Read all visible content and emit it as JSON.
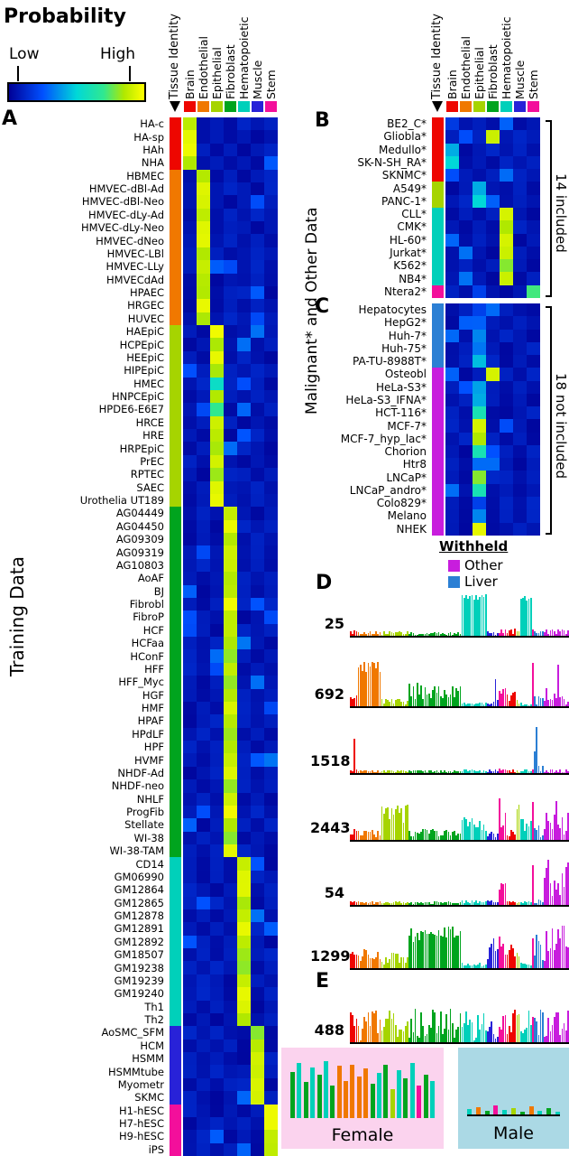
{
  "legend": {
    "title": "Probability",
    "low": "Low",
    "high": "High"
  },
  "tissue_identity_label": "Tissue Identity",
  "columns": [
    {
      "name": "Brain",
      "color": "#ee0600"
    },
    {
      "name": "Endothelial",
      "color": "#f07800"
    },
    {
      "name": "Epithelial",
      "color": "#a6d400"
    },
    {
      "name": "Fibroblast",
      "color": "#00a41e"
    },
    {
      "name": "Hematopoietic",
      "color": "#00d0ba"
    },
    {
      "name": "Muscle",
      "color": "#2822d8"
    },
    {
      "name": "Stem",
      "color": "#f30f9b"
    }
  ],
  "colors": {
    "colormap": [
      [
        0,
        "#000096"
      ],
      [
        0.25,
        "#0050ff"
      ],
      [
        0.5,
        "#00d8d8"
      ],
      [
        0.7,
        "#30e890"
      ],
      [
        0.85,
        "#b0e800"
      ],
      [
        1,
        "#ffff00"
      ]
    ],
    "bar_palette": {
      "g": "#00a41e",
      "t": "#00d0ba",
      "o": "#f07800",
      "c": "#a6d400",
      "m": "#f30f9b"
    }
  },
  "panel_a": {
    "letter": "A",
    "side_label": "Training Data",
    "groups": [
      {
        "g": 0,
        "rows": [
          "HA-c",
          "HA-sp",
          "HAh",
          "NHA"
        ]
      },
      {
        "g": 1,
        "rows": [
          "HBMEC",
          "HMVEC-dBl-Ad",
          "HMVEC-dBl-Neo",
          "HMVEC-dLy-Ad",
          "HMVEC-dLy-Neo",
          "HMVEC-dNeo",
          "HMVEC-LBl",
          "HMVEC-LLy",
          "HMVECdAd",
          "HPAEC",
          "HRGEC",
          "HUVEC"
        ]
      },
      {
        "g": 2,
        "rows": [
          "HAEpiC",
          "HCPEpiC",
          "HEEpiC",
          "HIPEpiC",
          "HMEC",
          "HNPCEpiC",
          "HPDE6-E6E7",
          "HRCE",
          "HRE",
          "HRPEpiC",
          "PrEC",
          "RPTEC",
          "SAEC",
          "Urothelia UT189"
        ]
      },
      {
        "g": 3,
        "rows": [
          "AG04449",
          "AG04450",
          "AG09309",
          "AG09319",
          "AG10803",
          "AoAF",
          "BJ",
          "Fibrobl",
          "FibroP",
          "HCF",
          "HCFaa",
          "HConF",
          "HFF",
          "HFF_Myc",
          "HGF",
          "HMF",
          "HPAF",
          "HPdLF",
          "HPF",
          "HVMF",
          "NHDF-Ad",
          "NHDF-neo",
          "NHLF",
          "ProgFib",
          "Stellate",
          "WI-38",
          "WI-38-TAM"
        ]
      },
      {
        "g": 4,
        "rows": [
          "CD14",
          "GM06990",
          "GM12864",
          "GM12865",
          "GM12878",
          "GM12891",
          "GM12892",
          "GM18507",
          "GM19238",
          "GM19239",
          "GM19240",
          "Th1",
          "Th2"
        ]
      },
      {
        "g": 5,
        "rows": [
          "AoSMC_SFM",
          "HCM",
          "HSMM",
          "HSMMtube",
          "Myometr",
          "SKMC"
        ]
      },
      {
        "g": 6,
        "rows": [
          "H1-hESC",
          "H7-hESC",
          "H9-hESC",
          "iPS"
        ]
      }
    ],
    "peak_overrides": {
      "HMEC": 0.55,
      "HPDE6-E6E7": 0.7
    }
  },
  "panel_b": {
    "letter": "B",
    "bracket": "14 included",
    "rows": [
      {
        "n": "BE2_C*",
        "g": 0,
        "peaks": {
          "0": 0.18
        }
      },
      {
        "n": "Gliobla*",
        "g": 0,
        "peaks": {
          "3": 0.9
        }
      },
      {
        "n": "Medullo*",
        "g": 0,
        "peaks": {
          "0": 0.42
        }
      },
      {
        "n": "SK-N-SH_RA*",
        "g": 0,
        "peaks": {
          "0": 0.5
        }
      },
      {
        "n": "SKNMC*",
        "g": 0,
        "peaks": {
          "4": 0.3
        }
      },
      {
        "n": "A549*",
        "g": 2,
        "peaks": {
          "2": 0.42
        }
      },
      {
        "n": "PANC-1*",
        "g": 2,
        "peaks": {
          "2": 0.5,
          "3": 0.28
        }
      },
      {
        "n": "CLL*",
        "g": 4,
        "peaks": {
          "4": 0.92
        }
      },
      {
        "n": "CMK*",
        "g": 4,
        "peaks": {
          "4": 0.85
        }
      },
      {
        "n": "HL-60*",
        "g": 4,
        "peaks": {
          "4": 0.92
        }
      },
      {
        "n": "Jurkat*",
        "g": 4,
        "peaks": {
          "4": 0.9
        }
      },
      {
        "n": "K562*",
        "g": 4,
        "peaks": {
          "4": 0.8
        }
      },
      {
        "n": "NB4*",
        "g": 4,
        "peaks": {
          "4": 0.9
        }
      },
      {
        "n": "Ntera2*",
        "g": 6,
        "peaks": {
          "6": 0.72,
          "2": 0.2
        }
      }
    ]
  },
  "panel_c": {
    "letter": "C",
    "bracket": "18 not included",
    "rows": [
      {
        "n": "Hepatocytes",
        "w": "liver",
        "peaks": {
          "2": 0.2,
          "3": 0.3
        }
      },
      {
        "n": "HepG2*",
        "w": "liver",
        "peaks": {
          "2": 0.28
        }
      },
      {
        "n": "Huh-7*",
        "w": "liver",
        "peaks": {
          "2": 0.35
        }
      },
      {
        "n": "Huh-75*",
        "w": "liver",
        "peaks": {
          "2": 0.32
        }
      },
      {
        "n": "PA-TU-8988T*",
        "w": "liver",
        "peaks": {
          "2": 0.45
        }
      },
      {
        "n": "Osteobl",
        "w": "other",
        "peaks": {
          "3": 0.92
        }
      },
      {
        "n": "HeLa-S3*",
        "w": "other",
        "peaks": {
          "2": 0.4
        }
      },
      {
        "n": "HeLa-S3_IFNA*",
        "w": "other",
        "peaks": {
          "2": 0.42
        }
      },
      {
        "n": "HCT-116*",
        "w": "other",
        "peaks": {
          "2": 0.6
        }
      },
      {
        "n": "MCF-7*",
        "w": "other",
        "peaks": {
          "2": 0.92
        }
      },
      {
        "n": "MCF-7_hyp_lac*",
        "w": "other",
        "peaks": {
          "2": 0.85
        }
      },
      {
        "n": "Chorion",
        "w": "other",
        "peaks": {
          "2": 0.6,
          "3": 0.25
        }
      },
      {
        "n": "Htr8",
        "w": "other",
        "peaks": {
          "2": 0.3,
          "3": 0.3
        }
      },
      {
        "n": "LNCaP*",
        "w": "other",
        "peaks": {
          "2": 0.8
        }
      },
      {
        "n": "LNCaP_andro*",
        "w": "other",
        "peaks": {
          "2": 0.6
        }
      },
      {
        "n": "Colo829*",
        "w": "other",
        "peaks": {
          "2": 0.2
        }
      },
      {
        "n": "Melano",
        "w": "other",
        "peaks": {
          "2": 0.35
        }
      },
      {
        "n": "NHEK",
        "w": "other",
        "peaks": {
          "2": 0.95
        }
      }
    ]
  },
  "malignant_label": "Malignant* and Other Data",
  "withheld": {
    "title": "Withheld",
    "items": [
      {
        "key": "other",
        "label": "Other",
        "color": "#c81ddd"
      },
      {
        "key": "liver",
        "label": "Liver",
        "color": "#2b7fd4"
      }
    ]
  },
  "panel_d": {
    "letter": "D"
  },
  "panel_e": {
    "letter": "E"
  },
  "sex_panels": {
    "female": {
      "label": "Female",
      "bg": "#fbd3ee"
    },
    "male": {
      "label": "Male",
      "bg": "#abd9e5"
    }
  },
  "chart_data": {
    "type": "bar",
    "note": "Each DHS chart: one bar per sample (probability 0-1), samples ordered as panel A rows, then panel B, then panel C. levels = per-tissue-segment [base, variance]; spikes = named sample overrides. Heatmap data (0-1 probabilities) is in panel_a/b/c rows (peaks; diagonal ~0.8-0.98 for training rows).",
    "heatmap": {
      "type": "heatmap",
      "value_range": [
        0,
        1
      ],
      "columns": [
        "Brain",
        "Endothelial",
        "Epithelial",
        "Fibroblast",
        "Hematopoietic",
        "Muscle",
        "Stem"
      ],
      "panels": [
        "panel_a",
        "panel_b",
        "panel_c"
      ]
    },
    "dhs_charts": [
      {
        "label": "25",
        "levels": {
          "brain": [
            0.1,
            0.6
          ],
          "endo": [
            0.07,
            0.6
          ],
          "epi": [
            0.07,
            0.6
          ],
          "fibro": [
            0.05,
            0.6
          ],
          "hema": [
            0.88,
            0.08
          ],
          "muscle": [
            0.06,
            0.6
          ],
          "stem": [
            0.12,
            0.6
          ],
          "liver": [
            0.07,
            0.6
          ],
          "other": [
            0.1,
            0.7
          ]
        },
        "spikes": {}
      },
      {
        "label": "692",
        "levels": {
          "brain": [
            0.18,
            0.8
          ],
          "endo": [
            0.78,
            0.18
          ],
          "epi": [
            0.1,
            0.6
          ],
          "fibro": [
            0.32,
            0.55
          ],
          "hema": [
            0.05,
            0.5
          ],
          "muscle": [
            0.12,
            0.8
          ],
          "stem": [
            0.22,
            0.9
          ],
          "liver": [
            0.12,
            0.8
          ],
          "other": [
            0.2,
            0.9
          ]
        },
        "spikes": {
          "Ntera2*": 0.88,
          "Htr8": 0.85,
          "Myometr": 0.55
        }
      },
      {
        "label": "1518",
        "levels": {
          "brain": [
            0.05,
            0.6
          ],
          "endo": [
            0.04,
            0.6
          ],
          "epi": [
            0.04,
            0.6
          ],
          "fibro": [
            0.04,
            0.6
          ],
          "hema": [
            0.05,
            0.6
          ],
          "muscle": [
            0.05,
            0.6
          ],
          "stem": [
            0.06,
            0.6
          ],
          "liver": [
            0.1,
            0.8
          ],
          "other": [
            0.05,
            0.7
          ]
        },
        "spikes": {
          "HAh": 0.7,
          "HepG2*": 0.95,
          "Hepatocytes": 0.45
        }
      },
      {
        "label": "2443",
        "levels": {
          "brain": [
            0.15,
            0.7
          ],
          "endo": [
            0.12,
            0.7
          ],
          "epi": [
            0.55,
            0.35
          ],
          "fibro": [
            0.15,
            0.6
          ],
          "hema": [
            0.32,
            0.45
          ],
          "muscle": [
            0.1,
            0.6
          ],
          "stem": [
            0.35,
            0.7
          ],
          "liver": [
            0.18,
            0.7
          ],
          "other": [
            0.32,
            0.9
          ]
        },
        "spikes": {
          "H1-hESC": 0.85,
          "Ntera2*": 0.78,
          "Chorion": 0.8
        }
      },
      {
        "label": "54",
        "levels": {
          "brain": [
            0.06,
            0.5
          ],
          "endo": [
            0.05,
            0.5
          ],
          "epi": [
            0.06,
            0.5
          ],
          "fibro": [
            0.05,
            0.5
          ],
          "hema": [
            0.07,
            0.5
          ],
          "muscle": [
            0.06,
            0.5
          ],
          "stem": [
            0.35,
            0.6
          ],
          "liver": [
            0.08,
            0.6
          ],
          "other": [
            0.55,
            0.8
          ]
        },
        "spikes": {
          "Ntera2*": 0.85,
          "NHEK": 0.9,
          "Melano": 0.8
        }
      },
      {
        "label": "1299",
        "levels": {
          "brain": [
            0.3,
            0.7
          ],
          "endo": [
            0.28,
            0.7
          ],
          "epi": [
            0.22,
            0.7
          ],
          "fibro": [
            0.72,
            0.25
          ],
          "hema": [
            0.08,
            0.5
          ],
          "muscle": [
            0.42,
            0.6
          ],
          "stem": [
            0.5,
            0.7
          ],
          "liver": [
            0.45,
            0.7
          ],
          "other": [
            0.48,
            0.9
          ]
        },
        "spikes": {}
      },
      {
        "label": "488",
        "levels": {
          "brain": [
            0.38,
            0.9
          ],
          "endo": [
            0.38,
            0.9
          ],
          "epi": [
            0.38,
            0.9
          ],
          "fibro": [
            0.38,
            0.9
          ],
          "hema": [
            0.38,
            0.9
          ],
          "muscle": [
            0.38,
            0.9
          ],
          "stem": [
            0.38,
            0.9
          ],
          "liver": [
            0.38,
            0.9
          ],
          "other": [
            0.38,
            0.9
          ]
        },
        "spikes": {}
      }
    ],
    "female_male": {
      "female_bars": [
        [
          0.78,
          "g"
        ],
        [
          0.92,
          "t"
        ],
        [
          0.6,
          "g"
        ],
        [
          0.85,
          "t"
        ],
        [
          0.72,
          "g"
        ],
        [
          0.95,
          "t"
        ],
        [
          0.55,
          "g"
        ],
        [
          0.88,
          "o"
        ],
        [
          0.62,
          "o"
        ],
        [
          0.9,
          "o"
        ],
        [
          0.7,
          "o"
        ],
        [
          0.84,
          "o"
        ],
        [
          0.58,
          "g"
        ],
        [
          0.76,
          "t"
        ],
        [
          0.9,
          "g"
        ],
        [
          0.48,
          "c"
        ],
        [
          0.8,
          "t"
        ],
        [
          0.66,
          "g"
        ],
        [
          0.93,
          "t"
        ],
        [
          0.54,
          "m"
        ],
        [
          0.72,
          "g"
        ],
        [
          0.62,
          "t"
        ]
      ],
      "male_bars": [
        [
          0.1,
          "t"
        ],
        [
          0.15,
          "o"
        ],
        [
          0.07,
          "g"
        ],
        [
          0.18,
          "m"
        ],
        [
          0.09,
          "t"
        ],
        [
          0.13,
          "c"
        ],
        [
          0.06,
          "g"
        ],
        [
          0.16,
          "o"
        ],
        [
          0.08,
          "t"
        ],
        [
          0.12,
          "g"
        ],
        [
          0.05,
          "t"
        ]
      ]
    }
  }
}
